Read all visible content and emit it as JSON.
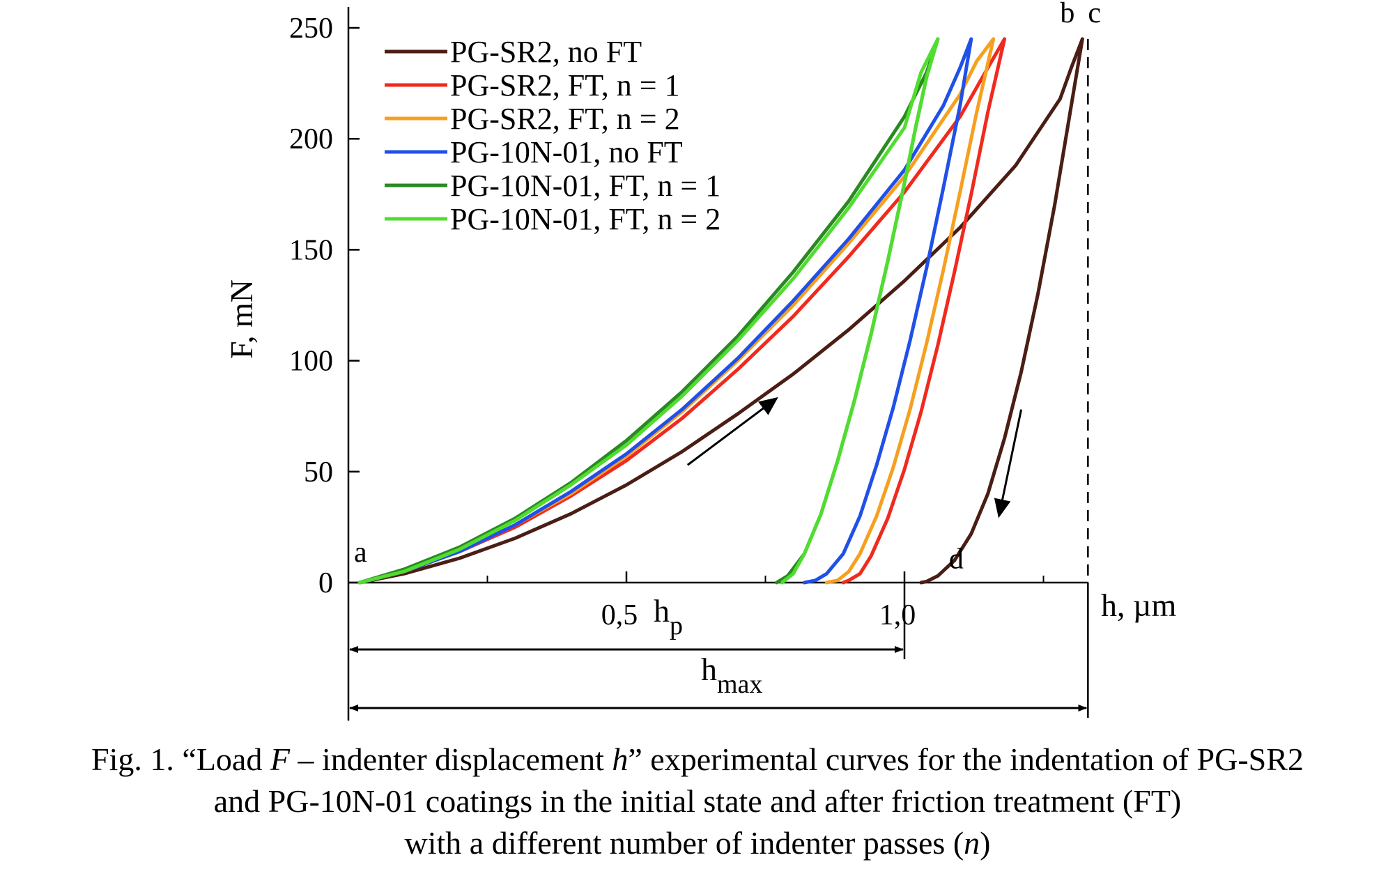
{
  "chart_data": {
    "type": "line",
    "title": "",
    "xlabel": "h, µm",
    "ylabel": "F, mN",
    "xlim": [
      0,
      1.33
    ],
    "ylim": [
      0,
      250
    ],
    "x_ticks": [
      {
        "value": 0.5,
        "label": "0,5"
      },
      {
        "value": 1.0,
        "label": "1,0"
      }
    ],
    "x_minor_ticks": [
      0.25,
      0.75,
      1.25
    ],
    "y_ticks": [
      {
        "value": 0,
        "label": "0"
      },
      {
        "value": 50,
        "label": "50"
      },
      {
        "value": 100,
        "label": "100"
      },
      {
        "value": 150,
        "label": "150"
      },
      {
        "value": 200,
        "label": "200"
      },
      {
        "value": 250,
        "label": "250"
      }
    ],
    "grid": false,
    "legend_position": "top-left",
    "point_labels": [
      {
        "text": "a",
        "x": 0.02,
        "y": 5
      },
      {
        "text": "b",
        "x": 1.29,
        "y": 250
      },
      {
        "text": "c",
        "x": 1.34,
        "y": 250
      },
      {
        "text": "d",
        "x": 1.09,
        "y": 2
      }
    ],
    "arrows": [
      {
        "from": [
          0.61,
          53
        ],
        "to": [
          0.77,
          83
        ]
      },
      {
        "from": [
          1.21,
          78
        ],
        "to": [
          1.17,
          30
        ]
      }
    ],
    "dimensions": [
      {
        "label_main": "h",
        "label_sub": "p",
        "from": 0,
        "to": 1.0
      },
      {
        "label_main": "h",
        "label_sub": "max",
        "from": 0,
        "to": 1.33
      }
    ],
    "series": [
      {
        "name": "PG-SR2, no FT",
        "color": "#4a1e14",
        "x": [
          0.02,
          0.1,
          0.2,
          0.3,
          0.4,
          0.5,
          0.6,
          0.7,
          0.8,
          0.9,
          1.0,
          1.1,
          1.2,
          1.28,
          1.3,
          1.32,
          1.32,
          1.3,
          1.27,
          1.24,
          1.21,
          1.18,
          1.15,
          1.12,
          1.09,
          1.06,
          1.04,
          1.03
        ],
        "y": [
          0,
          4,
          11,
          20,
          31,
          44,
          59,
          76,
          94,
          114,
          136,
          160,
          188,
          218,
          232,
          245,
          245,
          215,
          170,
          130,
          95,
          65,
          40,
          22,
          10,
          3,
          0.5,
          0
        ]
      },
      {
        "name": "PG-SR2, FT, n = 1",
        "color": "#f02a1e",
        "x": [
          0.02,
          0.1,
          0.2,
          0.3,
          0.4,
          0.5,
          0.6,
          0.7,
          0.8,
          0.9,
          1.0,
          1.1,
          1.15,
          1.18,
          1.18,
          1.15,
          1.12,
          1.09,
          1.06,
          1.03,
          1.0,
          0.97,
          0.94,
          0.92,
          0.9,
          0.89
        ],
        "y": [
          0,
          5,
          14,
          25,
          39,
          55,
          74,
          96,
          120,
          147,
          176,
          210,
          232,
          245,
          245,
          212,
          175,
          140,
          107,
          77,
          51,
          29,
          12,
          4,
          1,
          0
        ]
      },
      {
        "name": "PG-SR2, FT, n = 2",
        "color": "#f5a020",
        "x": [
          0.02,
          0.1,
          0.2,
          0.3,
          0.4,
          0.5,
          0.6,
          0.7,
          0.8,
          0.9,
          1.0,
          1.1,
          1.13,
          1.16,
          1.16,
          1.13,
          1.1,
          1.07,
          1.04,
          1.01,
          0.98,
          0.95,
          0.92,
          0.9,
          0.88,
          0.86
        ],
        "y": [
          0,
          5,
          14,
          26,
          40,
          57,
          77,
          100,
          125,
          153,
          183,
          220,
          235,
          245,
          245,
          212,
          176,
          141,
          108,
          78,
          52,
          30,
          13,
          5,
          1,
          0
        ]
      },
      {
        "name": "PG-10N-01, no FT",
        "color": "#2050e8",
        "x": [
          0.02,
          0.1,
          0.2,
          0.3,
          0.4,
          0.5,
          0.6,
          0.7,
          0.8,
          0.9,
          1.0,
          1.07,
          1.1,
          1.12,
          1.12,
          1.1,
          1.07,
          1.04,
          1.01,
          0.98,
          0.95,
          0.92,
          0.89,
          0.86,
          0.84,
          0.82
        ],
        "y": [
          0,
          5,
          14,
          26,
          41,
          58,
          78,
          101,
          127,
          155,
          186,
          215,
          232,
          245,
          245,
          215,
          178,
          142,
          109,
          79,
          53,
          30,
          13,
          4,
          1,
          0
        ]
      },
      {
        "name": "PG-10N-01, FT, n = 1",
        "color": "#2a8a22",
        "x": [
          0.02,
          0.1,
          0.2,
          0.3,
          0.4,
          0.5,
          0.6,
          0.7,
          0.8,
          0.9,
          1.0,
          1.04,
          1.06,
          1.06,
          1.04,
          1.02,
          1.0,
          0.97,
          0.94,
          0.91,
          0.88,
          0.85,
          0.82,
          0.79,
          0.77
        ],
        "y": [
          0,
          6,
          16,
          29,
          45,
          64,
          86,
          111,
          140,
          172,
          210,
          230,
          245,
          245,
          228,
          205,
          180,
          145,
          112,
          82,
          55,
          31,
          13,
          3,
          0
        ]
      },
      {
        "name": "PG-10N-01, FT, n = 2",
        "color": "#50dd30",
        "x": [
          0.02,
          0.1,
          0.2,
          0.3,
          0.4,
          0.5,
          0.6,
          0.7,
          0.8,
          0.9,
          1.0,
          1.03,
          1.06,
          1.06,
          1.04,
          1.02,
          1.0,
          0.97,
          0.94,
          0.91,
          0.88,
          0.85,
          0.82,
          0.8,
          0.78
        ],
        "y": [
          0,
          5,
          15,
          28,
          44,
          62,
          84,
          109,
          137,
          169,
          205,
          230,
          245,
          245,
          228,
          205,
          180,
          145,
          112,
          82,
          55,
          31,
          13,
          4,
          0
        ]
      }
    ]
  },
  "caption": {
    "line1_a": "Fig. 1. “Load ",
    "line1_var_f": "F",
    "line1_b": " – indenter displacement ",
    "line1_var_h": "h",
    "line1_c": "” experimental curves for the indentation of PG-SR2",
    "line2": "and PG-10N-01 coatings in the initial state and after friction treatment (FT)",
    "line3_a": "with a different number of indenter passes (",
    "line3_var_n": "n",
    "line3_b": ")"
  }
}
